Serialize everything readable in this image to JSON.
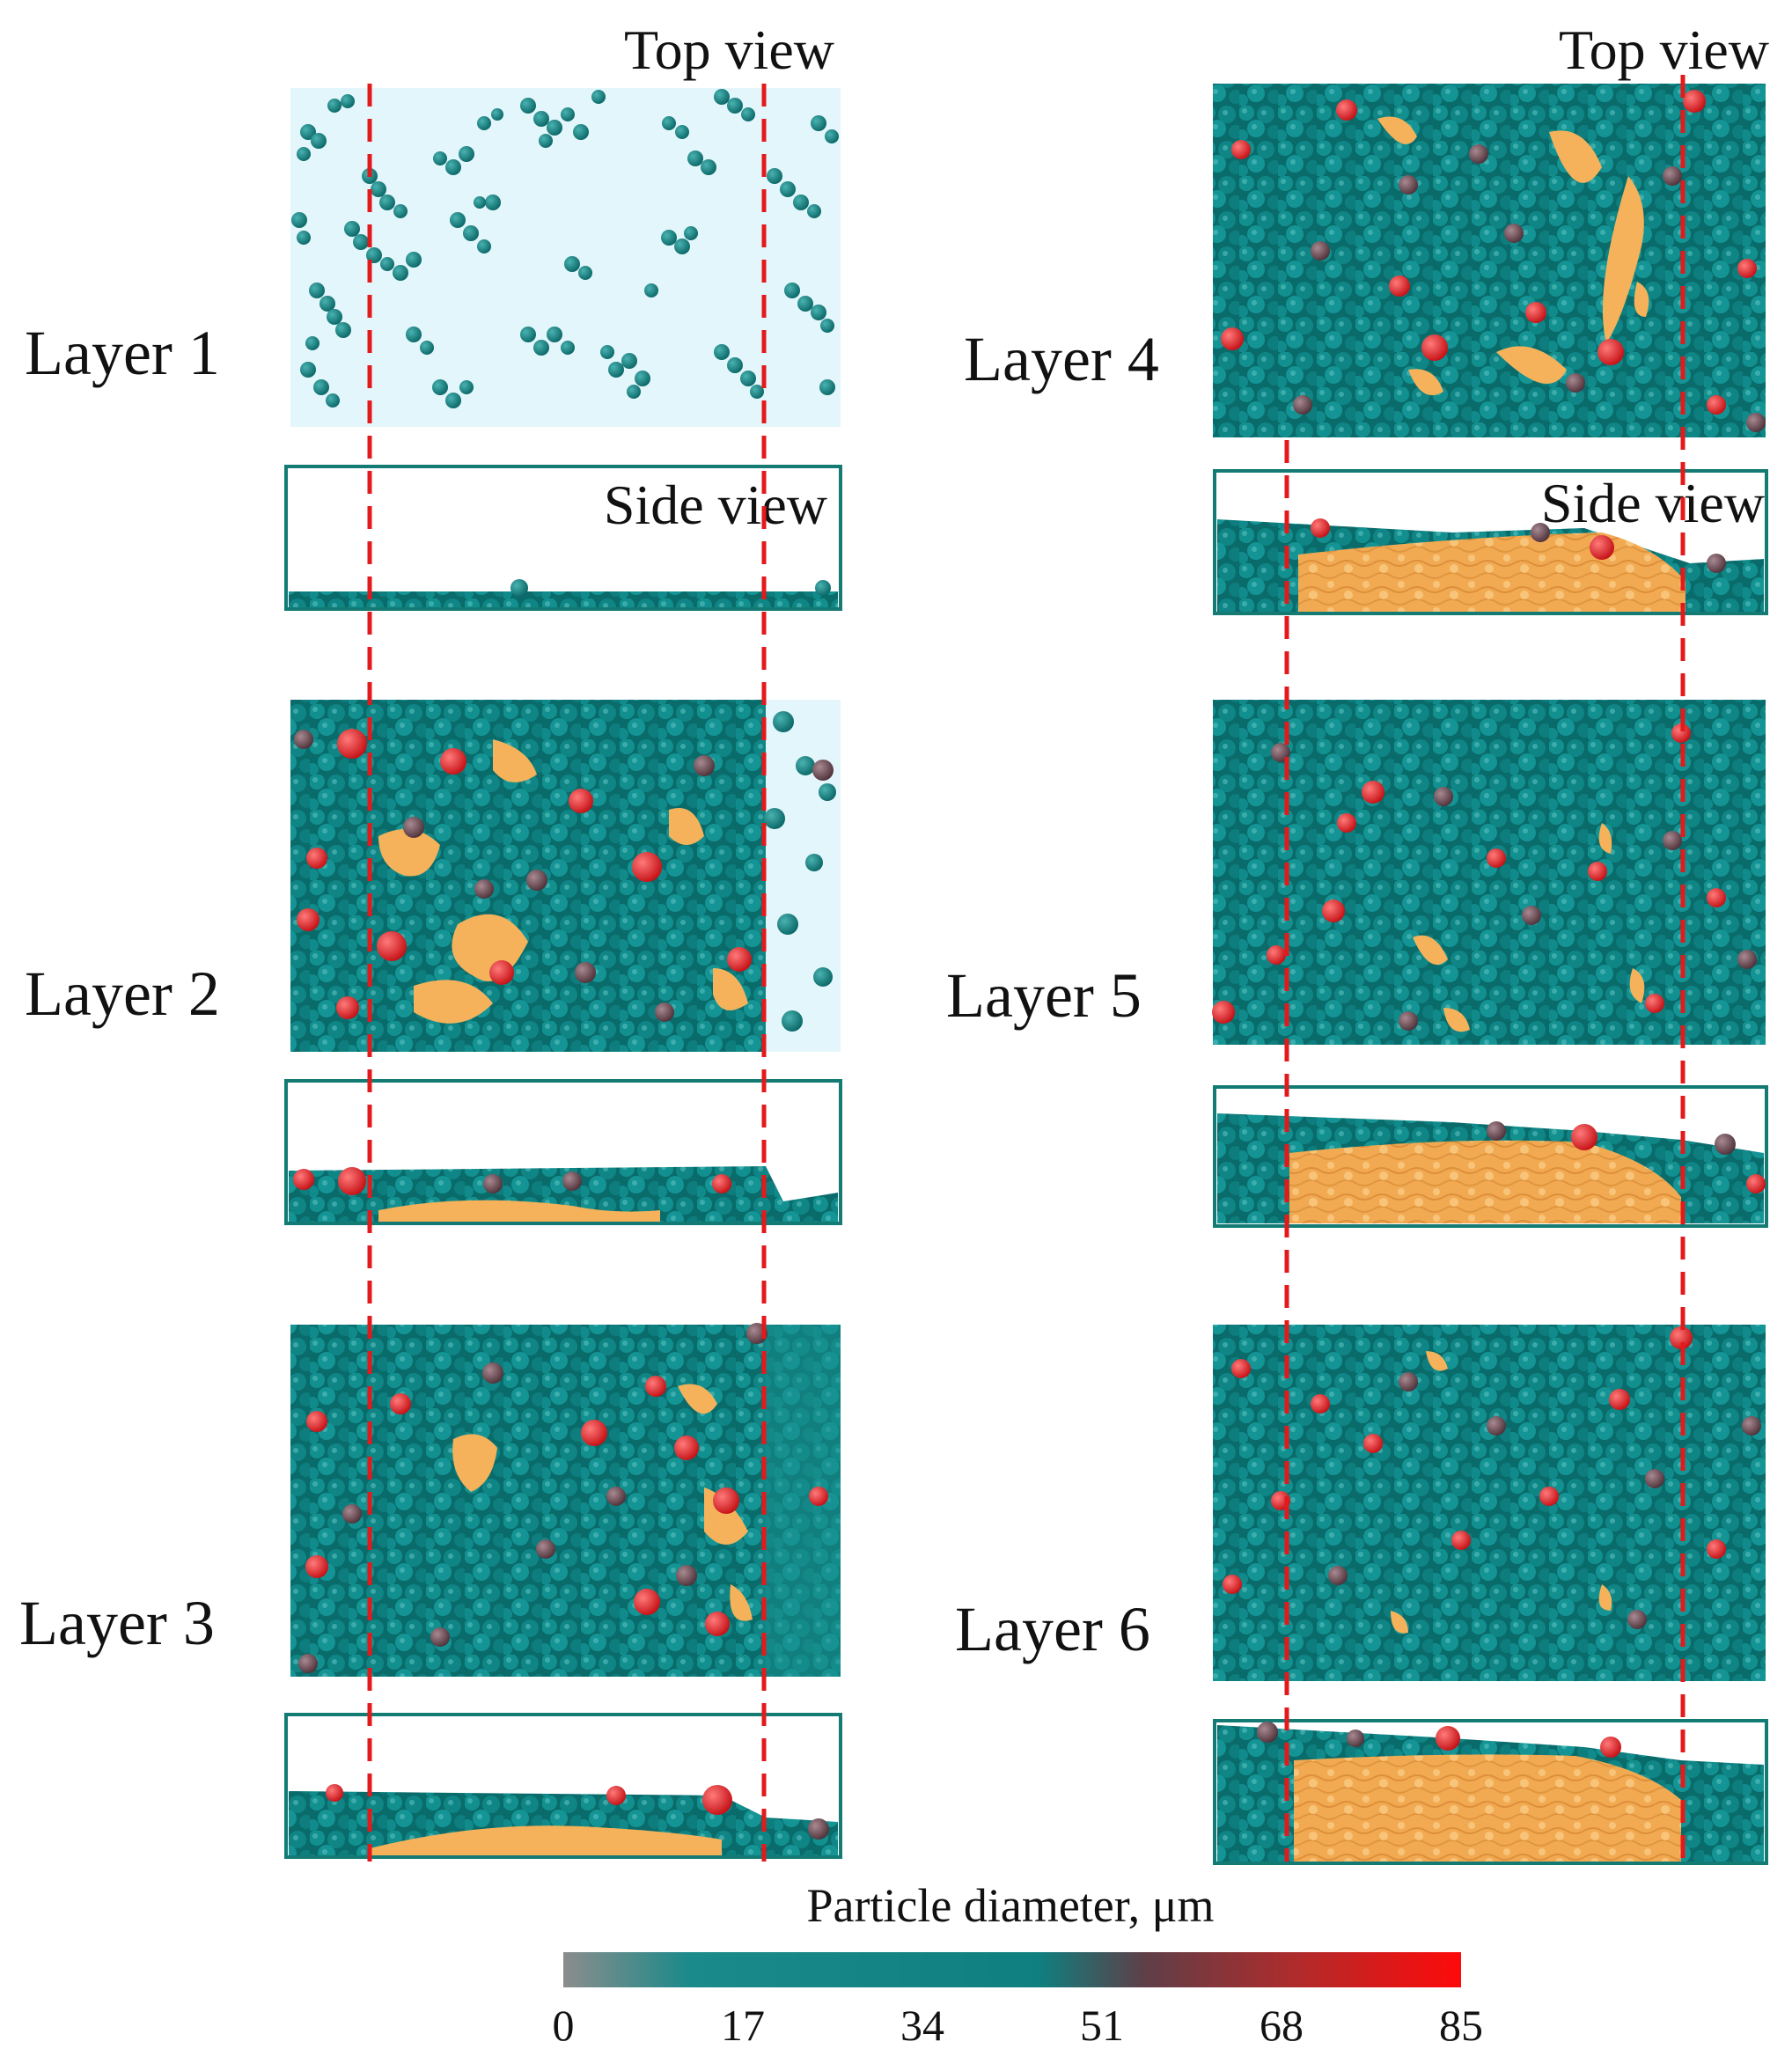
{
  "layers": [
    {
      "label": "Layer 1",
      "top_view_caption": "Top view",
      "side_view_caption": "Side view"
    },
    {
      "label": "Layer 2"
    },
    {
      "label": "Layer 3"
    },
    {
      "label": "Layer 4",
      "top_view_caption": "Top view",
      "side_view_caption": "Side view"
    },
    {
      "label": "Layer 5"
    },
    {
      "label": "Layer 6"
    }
  ],
  "colorbar": {
    "title": "Particle diameter, μm",
    "min": 0,
    "max": 85,
    "ticks": [
      "0",
      "17",
      "34",
      "51",
      "68",
      "85"
    ],
    "stops": [
      {
        "value": 0,
        "color": "#8c8c8c"
      },
      {
        "value": 12,
        "color": "#1a8a8a"
      },
      {
        "value": 45,
        "color": "#0f7f7f"
      },
      {
        "value": 55,
        "color": "#5e3f48"
      },
      {
        "value": 70,
        "color": "#b32a2a"
      },
      {
        "value": 85,
        "color": "#ff0a0a"
      }
    ]
  },
  "colors": {
    "small_particle": "#0f8585",
    "medium_particle": "#6d4b55",
    "large_particle": "#e8151b",
    "melt_pool": "#f5b25a",
    "substrate_background": "#e3f6fb",
    "frame": "#137b73",
    "dashed_guide": "#e31a1c"
  }
}
